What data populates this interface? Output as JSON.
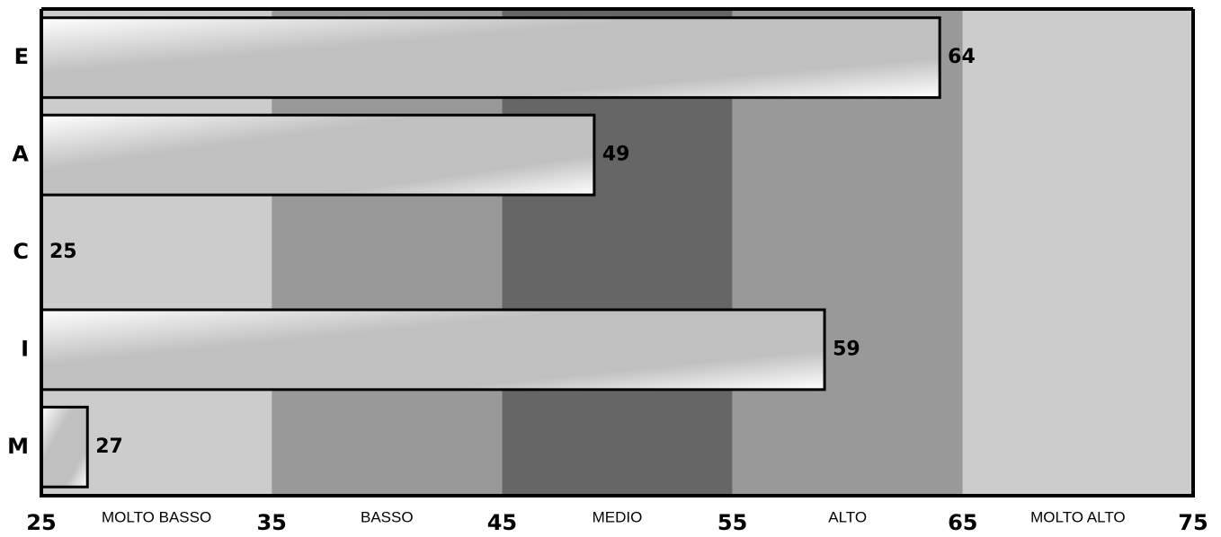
{
  "chart_data": {
    "type": "bar",
    "orientation": "horizontal",
    "categories": [
      "E",
      "A",
      "C",
      "I",
      "M"
    ],
    "values": [
      64,
      49,
      25,
      59,
      27
    ],
    "xlim": [
      25,
      75
    ],
    "x_ticks": [
      "25",
      "35",
      "45",
      "55",
      "65",
      "75"
    ],
    "bands": [
      {
        "label": "MOLTO BASSO",
        "from": 25,
        "to": 35,
        "color": "#cccccc"
      },
      {
        "label": "BASSO",
        "from": 35,
        "to": 45,
        "color": "#999999"
      },
      {
        "label": "MEDIO",
        "from": 45,
        "to": 55,
        "color": "#666666"
      },
      {
        "label": "ALTO",
        "from": 55,
        "to": 65,
        "color": "#999999"
      },
      {
        "label": "MOLTO ALTO",
        "from": 65,
        "to": 75,
        "color": "#cccccc"
      }
    ],
    "bar_fill": [
      "#ffffff",
      "#bfbfbf"
    ],
    "bar_stroke": "#000000",
    "grid": false,
    "legend": "none"
  }
}
